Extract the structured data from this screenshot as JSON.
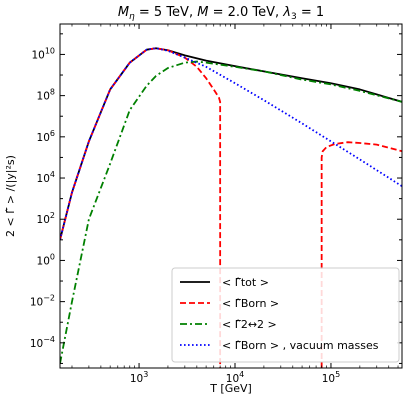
{
  "chart_data": {
    "type": "line",
    "title": "M_η = 5 TeV, M = 2.0 TeV, λ₃ = 1",
    "xlabel": "T [GeV]",
    "ylabel": "2 < Γ̂ > /(|y|²s)",
    "xscale": "log",
    "yscale": "log",
    "xlim": [
      150,
      550000
    ],
    "ylim": [
      6e-06,
      300000000000
    ],
    "grid": false,
    "legend_position": "bottom-right",
    "x_ticks": [
      {
        "value": 1000,
        "base": "10",
        "exp": "3"
      },
      {
        "value": 10000,
        "base": "10",
        "exp": "4"
      },
      {
        "value": 100000,
        "base": "10",
        "exp": "5"
      }
    ],
    "y_ticks": [
      {
        "value": 0.0001,
        "base": "10",
        "exp": "−4"
      },
      {
        "value": 0.01,
        "base": "10",
        "exp": "−2"
      },
      {
        "value": 1,
        "base": "10",
        "exp": "0"
      },
      {
        "value": 100,
        "base": "10",
        "exp": "2"
      },
      {
        "value": 10000,
        "base": "10",
        "exp": "4"
      },
      {
        "value": 1000000,
        "base": "10",
        "exp": "6"
      },
      {
        "value": 100000000,
        "base": "10",
        "exp": "8"
      },
      {
        "value": 10000000000,
        "base": "10",
        "exp": "10"
      }
    ],
    "series": [
      {
        "name": "< Γ̂tot >",
        "color": "#000000",
        "dash": "solid",
        "x": [
          150,
          200,
          300,
          500,
          800,
          1200,
          1500,
          2000,
          3000,
          5000,
          10000,
          20000,
          50000,
          100000,
          200000,
          550000
        ],
        "y": [
          10,
          2000,
          600000,
          200000000,
          4000000000,
          17000000000,
          20000000000,
          16000000000,
          9000000000,
          5000000000,
          2700000000,
          1500000000,
          700000000,
          400000000,
          200000000,
          50000000
        ]
      },
      {
        "name": "< Γ̂Born >",
        "color": "#ff0000",
        "dash": "dashed",
        "x": [
          150,
          200,
          300,
          500,
          800,
          1200,
          1500,
          2000,
          3000,
          4000,
          5000,
          6000,
          6800,
          7000,
          7000,
          null,
          80000,
          80000,
          82000,
          90000,
          110000,
          150000,
          200000,
          300000,
          550000
        ],
        "y": [
          10,
          2000,
          600000,
          200000000,
          4000000000,
          17000000000,
          20000000000,
          16000000000,
          7000000000,
          2500000000,
          700000000,
          200000000,
          80000000,
          50000000,
          6e-06,
          null,
          6e-06,
          100000,
          200000,
          320000,
          450000,
          550000,
          500000,
          420000,
          200000
        ]
      },
      {
        "name": "< Γ̂2↔2 >",
        "color": "#008000",
        "dash": "dashdot",
        "x": [
          150,
          200,
          300,
          500,
          800,
          1200,
          1500,
          2000,
          3000,
          4000,
          5000,
          10000,
          20000,
          50000,
          100000,
          200000,
          550000
        ],
        "y": [
          1e-05,
          0.01,
          100,
          50000,
          20000000,
          300000000,
          900000000,
          2200000000,
          4000000000,
          4500000000,
          4000000000,
          2500000000,
          1500000000,
          600000000,
          350000000,
          170000000,
          50000000
        ]
      },
      {
        "name": "< Γ̂Born > , vacuum masses",
        "color": "#0000ff",
        "dash": "dotted",
        "x": [
          150,
          200,
          300,
          500,
          800,
          1200,
          1500,
          2000,
          3000,
          5000,
          10000,
          20000,
          50000,
          100000,
          200000,
          550000
        ],
        "y": [
          10,
          2000,
          600000,
          200000000,
          4000000000,
          17000000000,
          20000000000,
          15000000000,
          7000000000,
          2500000000,
          400000000,
          60000000,
          4500000,
          600000,
          80000,
          4000
        ]
      }
    ]
  }
}
